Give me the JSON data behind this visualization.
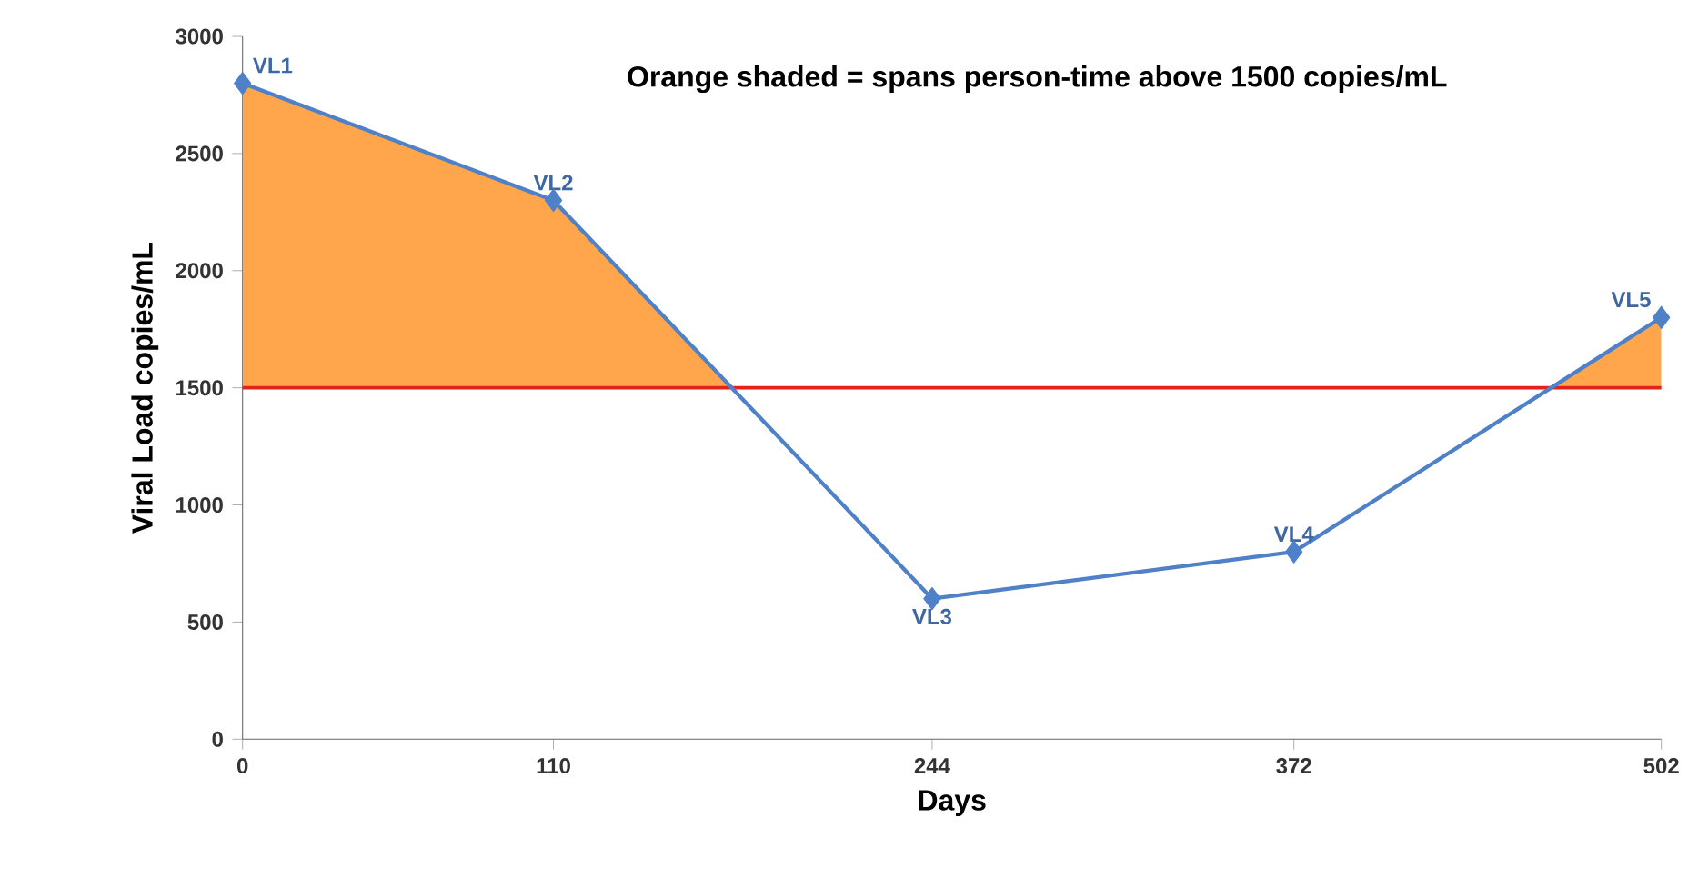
{
  "chart_data": {
    "type": "line",
    "title": "Orange shaded = spans person-time above 1500 copies/mL",
    "xlabel": "Days",
    "ylabel": "Viral Load copies/mL",
    "x": [
      0,
      110,
      244,
      372,
      502
    ],
    "series": [
      {
        "color": "#4f81c9",
        "values": [
          2800,
          2300,
          600,
          800,
          1800
        ]
      }
    ],
    "xlim": [
      0,
      502
    ],
    "xticks": [
      0,
      110,
      244,
      372,
      502
    ],
    "ylim": [
      0,
      3000
    ],
    "yticks": [
      0,
      500,
      1000,
      1500,
      2000,
      2500,
      3000
    ],
    "marker": "diamond",
    "line_style": "solid",
    "grid": false,
    "ref_lines": [
      {
        "axis": "y",
        "value": 1500,
        "color": "#e8201c"
      }
    ],
    "annotations": [
      {
        "text": "VL1",
        "x": 0,
        "y": 2800
      },
      {
        "text": "VL2",
        "x": 110,
        "y": 2300
      },
      {
        "text": "VL3",
        "x": 244,
        "y": 600
      },
      {
        "text": "VL4",
        "x": 372,
        "y": 800
      },
      {
        "text": "VL5",
        "x": 502,
        "y": 1800
      }
    ]
  }
}
